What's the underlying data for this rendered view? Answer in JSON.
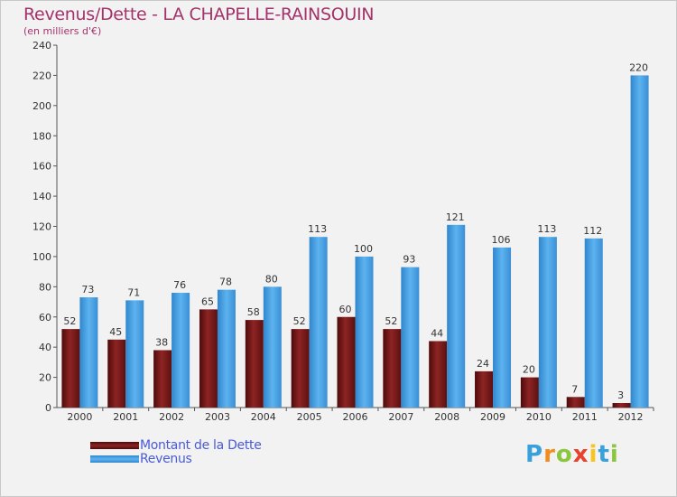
{
  "title": "Revenus/Dette - LA CHAPELLE-RAINSOUIN",
  "subtitle": "(en milliers d'€)",
  "logo": {
    "text": "Proxiti",
    "letters": [
      {
        "ch": "P",
        "color": "#3aa0dc"
      },
      {
        "ch": "r",
        "color": "#f28c1e"
      },
      {
        "ch": "o",
        "color": "#8cc63f"
      },
      {
        "ch": "x",
        "color": "#e8412c"
      },
      {
        "ch": "i",
        "color": "#f7c51e"
      },
      {
        "ch": "t",
        "color": "#3aa0dc"
      },
      {
        "ch": "i",
        "color": "#8cc63f"
      }
    ]
  },
  "chart_data": {
    "type": "bar",
    "title": "Revenus/Dette - LA CHAPELLE-RAINSOUIN",
    "subtitle": "(en milliers d'€)",
    "categories": [
      "2000",
      "2001",
      "2002",
      "2003",
      "2004",
      "2005",
      "2006",
      "2007",
      "2008",
      "2009",
      "2010",
      "2011",
      "2012"
    ],
    "series": [
      {
        "name": "Montant de la Dette",
        "color": "#7a1a1a",
        "values": [
          52,
          45,
          38,
          65,
          58,
          52,
          60,
          52,
          44,
          24,
          20,
          7,
          3
        ]
      },
      {
        "name": "Revenus",
        "color": "#4aa3e3",
        "values": [
          73,
          71,
          76,
          78,
          80,
          113,
          100,
          93,
          121,
          106,
          113,
          112,
          220
        ]
      }
    ],
    "ylim": [
      0,
      240
    ],
    "yticks": [
      0,
      20,
      40,
      60,
      80,
      100,
      120,
      140,
      160,
      180,
      200,
      220,
      240
    ],
    "grid": false,
    "legend": "bottom-left"
  }
}
